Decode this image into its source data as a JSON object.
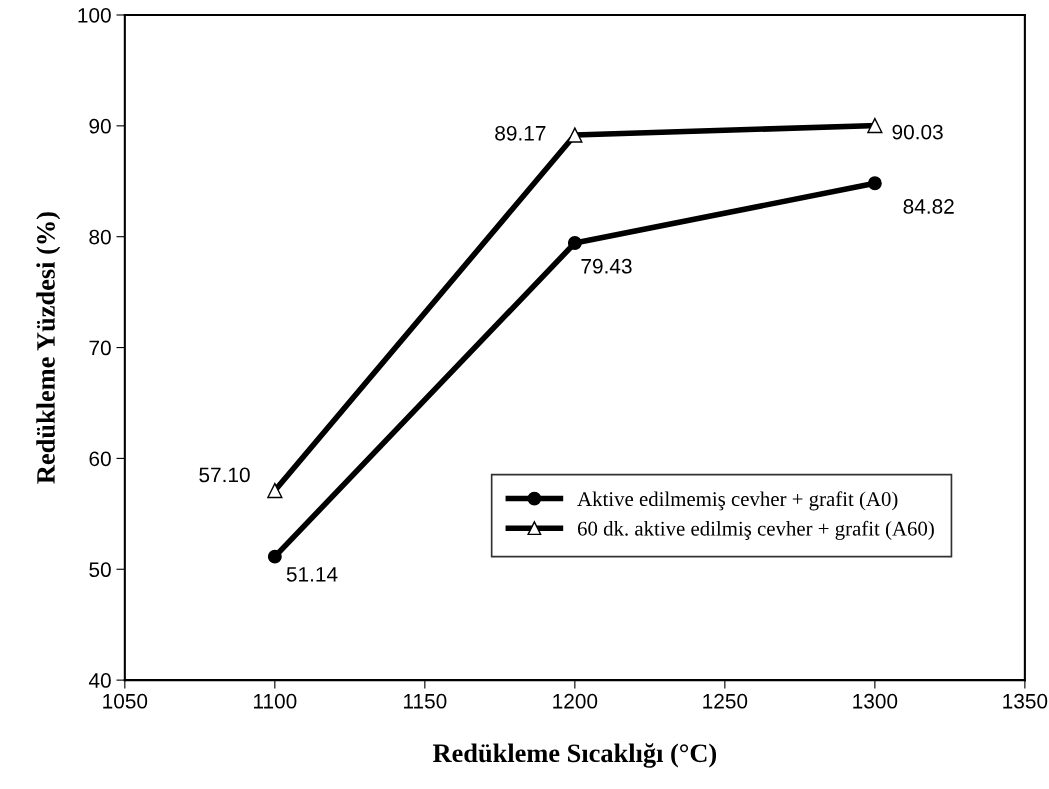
{
  "chart_data": {
    "type": "line",
    "xlabel": "Redükleme Sıcaklığı (°C)",
    "ylabel": "Redükleme Yüzdesi (%)",
    "x": [
      1100,
      1200,
      1300
    ],
    "series": [
      {
        "name": "Aktive edilmemiş cevher + grafit (A0)",
        "color": "#000000",
        "marker": "circle",
        "values": [
          51.14,
          79.43,
          84.82
        ],
        "value_labels": [
          "51.14",
          "79.43",
          "84.82"
        ]
      },
      {
        "name": "60 dk. aktive edilmiş cevher + grafit (A60)",
        "color": "#000000",
        "marker": "triangle",
        "values": [
          57.1,
          89.17,
          90.03
        ],
        "value_labels": [
          "57.10",
          "89.17",
          "90.03"
        ]
      }
    ],
    "xlim": [
      1050,
      1350
    ],
    "xticks": [
      1050,
      1100,
      1150,
      1200,
      1250,
      1300,
      1350
    ],
    "ylim": [
      40,
      100
    ],
    "yticks": [
      40,
      50,
      60,
      70,
      80,
      90,
      100
    ],
    "grid": false,
    "legend": "bottom right",
    "line_style": "solid"
  }
}
